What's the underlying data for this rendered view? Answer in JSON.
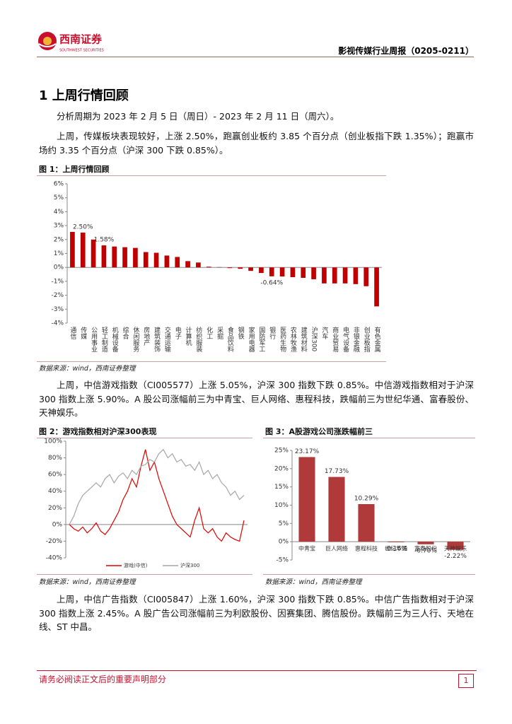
{
  "header": {
    "brand": "西南证券",
    "brand_en": "SOUTHWEST SECURITIES",
    "report_title": "影视传媒行业周报（0205-0211）"
  },
  "section": {
    "heading": "1 上周行情回顾"
  },
  "paragraphs": [
    "分析周期为 2023 年 2 月 5 日（周日）- 2023 年 2 月 11 日（周六）。",
    "上周，传媒板块表现较好，上涨 2.50%，跑赢创业板约 3.85 个百分点（创业板指下跌 1.35%）；跑赢市场约 3.35 个百分点（沪深 300 下跌 0.85%）。",
    "上周，中信游戏指数（CI005577）上涨 5.05%，沪深 300 指数下跌 0.85%。中信游戏指数相对于沪深 300 指数上涨 5.90%。A 股公司涨幅前三为中青宝、巨人网络、惠程科技，跌幅前三为世纪华通、富春股份、天神娱乐。",
    "上周，中信广告指数（CI005847）上涨 1.60%，沪深 300 指数下跌 0.85%。中信广告指数相对于沪深 300 指数上涨 2.45%。A 股广告公司涨幅前三为利欧股份、因赛集团、腾信股份。跌幅前三为三人行、天地在线、ST 中昌。"
  ],
  "chart_data": [
    {
      "type": "bar",
      "title": "图 1：上周行情回顾",
      "source": "数据来源：wind，西南证券整理",
      "color": "#c00000",
      "categories": [
        "通信",
        "传媒",
        "公用事业",
        "轻工制造",
        "机械设备",
        "综合",
        "休闲服务",
        "房地产",
        "建筑装饰",
        "交通运输",
        "电子",
        "计算机",
        "纺织服装",
        "化工",
        "采掘",
        "食品饮料",
        "钢铁",
        "家用电器",
        "国防军工",
        "银行",
        "医药生物",
        "农林牧渔",
        "建筑材料",
        "沪深300",
        "汽车",
        "商业贸易",
        "电气设备",
        "非银金融",
        "创业板指",
        "有色金属"
      ],
      "values": [
        2.55,
        2.5,
        2.0,
        1.58,
        1.5,
        1.45,
        1.4,
        1.1,
        1.05,
        0.85,
        0.75,
        0.45,
        0.35,
        0.05,
        0.02,
        -0.05,
        -0.1,
        -0.25,
        -0.4,
        -0.64,
        -0.65,
        -0.7,
        -0.75,
        -0.85,
        -1.15,
        -1.15,
        -1.15,
        -1.2,
        -1.35,
        -2.8
      ],
      "value_labels": [
        null,
        "2.50%",
        null,
        "1.58%",
        null,
        null,
        null,
        null,
        null,
        null,
        null,
        null,
        null,
        null,
        null,
        null,
        null,
        null,
        null,
        "-0.64%",
        null,
        null,
        null,
        null,
        null,
        null,
        null,
        null,
        null,
        null
      ],
      "ylim": [
        -4,
        6
      ],
      "yticks": [
        {
          "value": 6,
          "label": "6%"
        },
        {
          "value": 5,
          "label": "5%"
        },
        {
          "value": 4,
          "label": "4%"
        },
        {
          "value": 3,
          "label": "3%"
        },
        {
          "value": 2,
          "label": "2%"
        },
        {
          "value": 1,
          "label": "1%"
        },
        {
          "value": 0,
          "label": "0%"
        },
        {
          "value": -1,
          "label": "-1%"
        },
        {
          "value": -2,
          "label": "-2%"
        },
        {
          "value": -3,
          "label": "-3%"
        },
        {
          "value": -4,
          "label": "-4%"
        }
      ]
    },
    {
      "type": "line",
      "title": "图 2：游戏指数相对沪深300表现",
      "source": "数据来源：wind，西南证券整理",
      "series": [
        {
          "name": "游戏(中信)",
          "color": "#e00000",
          "values": [
            0,
            -5,
            -8,
            -3,
            -10,
            -5,
            2,
            -8,
            -12,
            -5,
            5,
            15,
            30,
            40,
            55,
            45,
            70,
            90,
            65,
            75,
            55,
            40,
            25,
            10,
            0,
            -5,
            -10,
            -15,
            5,
            20,
            -5,
            -10,
            -5,
            -15,
            -20,
            -10,
            -15,
            -18,
            -20,
            5
          ]
        },
        {
          "name": "沪深300",
          "color": "#a6a6a6",
          "values": [
            0,
            10,
            25,
            35,
            40,
            45,
            50,
            45,
            55,
            60,
            50,
            58,
            62,
            55,
            65,
            60,
            70,
            72,
            78,
            75,
            85,
            90,
            80,
            85,
            75,
            78,
            70,
            72,
            65,
            75,
            60,
            65,
            55,
            60,
            50,
            45,
            35,
            40,
            30,
            35
          ]
        }
      ],
      "ylim": [
        -40,
        100
      ],
      "yticks": [
        {
          "value": 100,
          "label": "100%"
        },
        {
          "value": 80,
          "label": "80%"
        },
        {
          "value": 60,
          "label": "60%"
        },
        {
          "value": 40,
          "label": "40%"
        },
        {
          "value": 20,
          "label": "20%"
        },
        {
          "value": 0,
          "label": "0%"
        },
        {
          "value": -20,
          "label": "-20%"
        },
        {
          "value": -40,
          "label": "-40%"
        }
      ]
    },
    {
      "type": "bar",
      "title": "图 3：A股游戏公司涨跌幅前三",
      "source": "数据来源：wind，西南证券整理",
      "color": "#b03a3a",
      "categories": [
        "中青宝",
        "巨人网络",
        "惠程科技",
        "世纪华通",
        "富春股份",
        "天神娱乐"
      ],
      "values": [
        23.17,
        17.73,
        10.29,
        -0.16,
        -0.7,
        -2.22
      ],
      "value_labels": [
        "23.17%",
        "17.73%",
        "10.29%",
        "-0.16%",
        "-0.70%",
        "-2.22%"
      ],
      "ylim": [
        -5,
        25
      ],
      "yticks": [
        {
          "value": 25,
          "label": "25%"
        },
        {
          "value": 20,
          "label": "20%"
        },
        {
          "value": 15,
          "label": "15%"
        },
        {
          "value": 10,
          "label": "10%"
        },
        {
          "value": 5,
          "label": "5%"
        },
        {
          "value": 0,
          "label": "0%"
        },
        {
          "value": -5,
          "label": "-5%"
        }
      ]
    }
  ],
  "footer": {
    "disclaimer": "请务必阅读正文后的重要声明部分",
    "page": "1"
  }
}
